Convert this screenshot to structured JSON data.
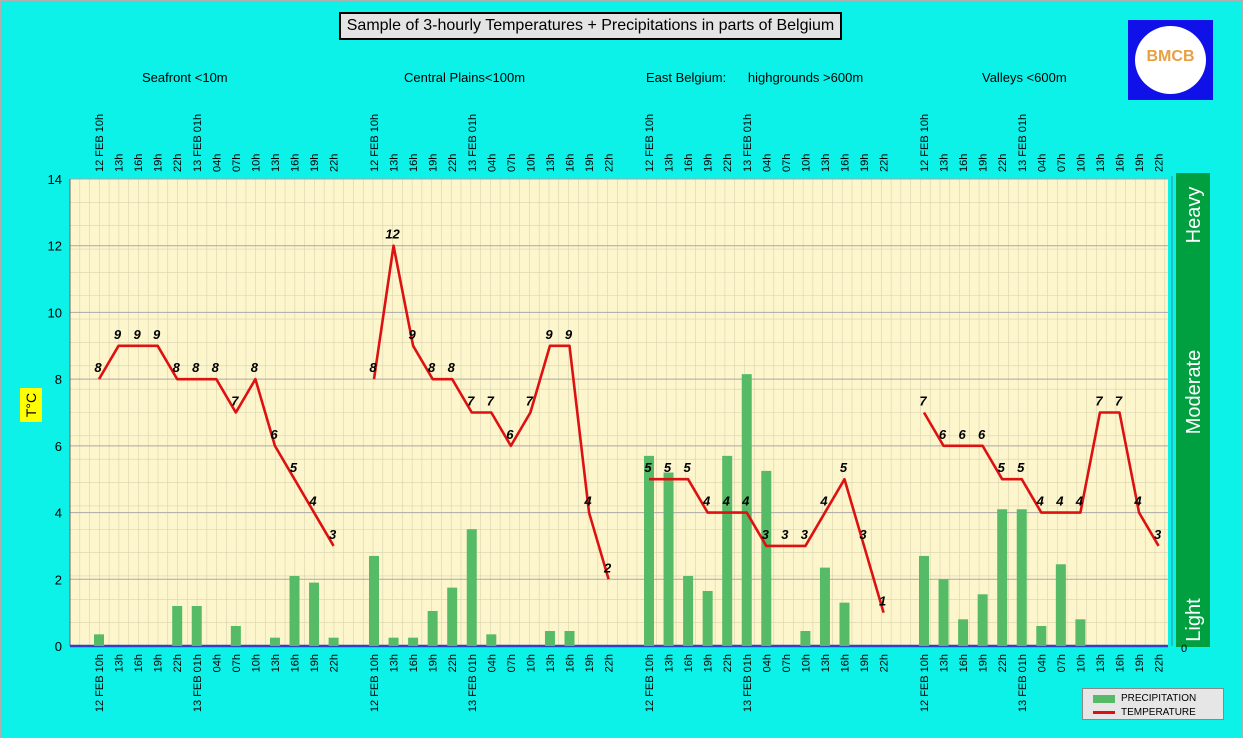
{
  "title": "Sample of 3-hourly Temperatures + Precipitations in parts of Belgium",
  "logo": {
    "text": "BMCB"
  },
  "regions": [
    {
      "label": "Seafront <10m"
    },
    {
      "label": "Central Plains<100m"
    },
    {
      "label": "East Belgium:      highgrounds >600m"
    },
    {
      "label": "Valleys <600m"
    }
  ],
  "ylabel": "T°C",
  "legend": {
    "precipitation": "PRECIPITATION",
    "temperature": "TEMPERATURE"
  },
  "intensity": {
    "labels": [
      "Light",
      "Moderate",
      "Heavy"
    ]
  },
  "colors": {
    "bar": "#55bb66",
    "line": "#dd1111",
    "plot_bg": "#fdf6cc",
    "intensity": "#00a040"
  },
  "chart_data": {
    "type": "bar+line",
    "ylim": [
      0,
      14
    ],
    "yticks": [
      0,
      2,
      4,
      6,
      8,
      10,
      12,
      14
    ],
    "grid": true,
    "legend_position": "bottom-right",
    "groups": [
      {
        "name": "Seafront <10m",
        "x": [
          "12 FEB 10h",
          "13h",
          "16h",
          "19h",
          "22h",
          "13 FEB 01h",
          "04h",
          "07h",
          "10h",
          "13h",
          "16h",
          "19h",
          "22h"
        ],
        "temperature": [
          8,
          9,
          9,
          9,
          8,
          8,
          8,
          7,
          8,
          6,
          5,
          4,
          3
        ],
        "precipitation": [
          0.35,
          0,
          0,
          0,
          1.2,
          1.2,
          0,
          0.6,
          0,
          0.25,
          2.1,
          1.9,
          0.25
        ]
      },
      {
        "name": "Central Plains<100m",
        "x": [
          "12 FEB 10h",
          "13h",
          "16h",
          "19h",
          "22h",
          "13 FEB 01h",
          "04h",
          "07h",
          "10h",
          "13h",
          "16h",
          "19h",
          "22h"
        ],
        "temperature": [
          8,
          12,
          9,
          8,
          8,
          7,
          7,
          6,
          7,
          9,
          9,
          4,
          2
        ],
        "precipitation": [
          2.7,
          0.25,
          0.25,
          1.05,
          1.75,
          3.5,
          0.35,
          0,
          0,
          0.45,
          0.45,
          0,
          0
        ]
      },
      {
        "name": "East Belgium: highgrounds >600m",
        "x": [
          "12 FEB 10h",
          "13h",
          "16h",
          "19h",
          "22h",
          "13 FEB 01h",
          "04h",
          "07h",
          "10h",
          "13h",
          "16h",
          "19h",
          "22h"
        ],
        "temperature": [
          5,
          5,
          5,
          4,
          4,
          4,
          3,
          3,
          3,
          4,
          5,
          3,
          1
        ],
        "precipitation": [
          5.7,
          5.2,
          2.1,
          1.65,
          5.7,
          8.15,
          5.25,
          0,
          0.45,
          2.35,
          1.3,
          0,
          0
        ]
      },
      {
        "name": "Valleys <600m",
        "x": [
          "12 FEB 10h",
          "13h",
          "16h",
          "19h",
          "22h",
          "13 FEB 01h",
          "04h",
          "07h",
          "10h",
          "13h",
          "16h",
          "19h",
          "22h"
        ],
        "temperature": [
          7,
          6,
          6,
          6,
          5,
          5,
          4,
          4,
          4,
          7,
          7,
          4,
          3
        ],
        "precipitation": [
          2.7,
          2.0,
          0.8,
          1.55,
          4.1,
          4.1,
          0.6,
          2.45,
          0.8,
          0,
          0,
          0,
          0
        ]
      }
    ]
  }
}
